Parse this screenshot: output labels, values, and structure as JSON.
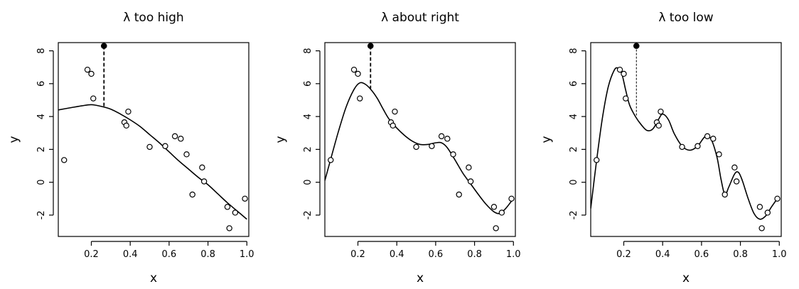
{
  "chart_data": [
    {
      "type": "scatter",
      "title": "λ too high",
      "xlabel": "x",
      "ylabel": "y",
      "xlim": [
        0.03,
        1.01
      ],
      "ylim": [
        -3.3,
        8.5
      ],
      "xticks": [
        0.2,
        0.4,
        0.6,
        0.8,
        1.0
      ],
      "xtick_labels": [
        "0.2",
        "0.4",
        "0.6",
        "0.8",
        "1.0"
      ],
      "yticks": [
        -2,
        0,
        2,
        4,
        6,
        8
      ],
      "ytick_labels": [
        "-2",
        "0",
        "2",
        "4",
        "6",
        "8"
      ],
      "grid": false,
      "points": [
        {
          "x": 0.06,
          "y": 1.35
        },
        {
          "x": 0.18,
          "y": 6.85
        },
        {
          "x": 0.2,
          "y": 6.6
        },
        {
          "x": 0.21,
          "y": 5.1
        },
        {
          "x": 0.37,
          "y": 3.65
        },
        {
          "x": 0.38,
          "y": 3.45
        },
        {
          "x": 0.39,
          "y": 4.3
        },
        {
          "x": 0.5,
          "y": 2.15
        },
        {
          "x": 0.58,
          "y": 2.2
        },
        {
          "x": 0.63,
          "y": 2.8
        },
        {
          "x": 0.66,
          "y": 2.65
        },
        {
          "x": 0.69,
          "y": 1.7
        },
        {
          "x": 0.72,
          "y": -0.75
        },
        {
          "x": 0.77,
          "y": 0.9
        },
        {
          "x": 0.78,
          "y": 0.05
        },
        {
          "x": 0.9,
          "y": -1.5
        },
        {
          "x": 0.91,
          "y": -2.8
        },
        {
          "x": 0.94,
          "y": -1.85
        },
        {
          "x": 0.99,
          "y": -1.0
        }
      ],
      "highlight": {
        "x": 0.265,
        "y": 8.3,
        "fit_y": 4.55
      },
      "curve": [
        {
          "x": 0.03,
          "y": 4.4
        },
        {
          "x": 0.1,
          "y": 4.55
        },
        {
          "x": 0.15,
          "y": 4.65
        },
        {
          "x": 0.2,
          "y": 4.72
        },
        {
          "x": 0.25,
          "y": 4.62
        },
        {
          "x": 0.3,
          "y": 4.45
        },
        {
          "x": 0.35,
          "y": 4.15
        },
        {
          "x": 0.4,
          "y": 3.8
        },
        {
          "x": 0.45,
          "y": 3.4
        },
        {
          "x": 0.5,
          "y": 2.9
        },
        {
          "x": 0.55,
          "y": 2.4
        },
        {
          "x": 0.6,
          "y": 1.85
        },
        {
          "x": 0.65,
          "y": 1.3
        },
        {
          "x": 0.7,
          "y": 0.8
        },
        {
          "x": 0.75,
          "y": 0.3
        },
        {
          "x": 0.8,
          "y": -0.15
        },
        {
          "x": 0.85,
          "y": -0.7
        },
        {
          "x": 0.9,
          "y": -1.25
        },
        {
          "x": 0.95,
          "y": -1.75
        },
        {
          "x": 1.0,
          "y": -2.25
        }
      ]
    },
    {
      "type": "scatter",
      "title": "λ about right",
      "xlabel": "x",
      "ylabel": "y",
      "xlim": [
        0.03,
        1.01
      ],
      "ylim": [
        -3.3,
        8.5
      ],
      "xticks": [
        0.2,
        0.4,
        0.6,
        0.8,
        1.0
      ],
      "xtick_labels": [
        "0.2",
        "0.4",
        "0.6",
        "0.8",
        "1.0"
      ],
      "yticks": [
        -2,
        0,
        2,
        4,
        6,
        8
      ],
      "ytick_labels": [
        "-2",
        "0",
        "2",
        "4",
        "6",
        "8"
      ],
      "grid": false,
      "points": [
        {
          "x": 0.06,
          "y": 1.35
        },
        {
          "x": 0.18,
          "y": 6.85
        },
        {
          "x": 0.2,
          "y": 6.6
        },
        {
          "x": 0.21,
          "y": 5.1
        },
        {
          "x": 0.37,
          "y": 3.65
        },
        {
          "x": 0.38,
          "y": 3.45
        },
        {
          "x": 0.39,
          "y": 4.3
        },
        {
          "x": 0.5,
          "y": 2.15
        },
        {
          "x": 0.58,
          "y": 2.2
        },
        {
          "x": 0.63,
          "y": 2.8
        },
        {
          "x": 0.66,
          "y": 2.65
        },
        {
          "x": 0.69,
          "y": 1.7
        },
        {
          "x": 0.72,
          "y": -0.75
        },
        {
          "x": 0.77,
          "y": 0.9
        },
        {
          "x": 0.78,
          "y": 0.05
        },
        {
          "x": 0.9,
          "y": -1.5
        },
        {
          "x": 0.91,
          "y": -2.8
        },
        {
          "x": 0.94,
          "y": -1.85
        },
        {
          "x": 0.99,
          "y": -1.0
        }
      ],
      "highlight": {
        "x": 0.265,
        "y": 8.3,
        "fit_y": 5.7
      },
      "curve": [
        {
          "x": 0.03,
          "y": 0.1
        },
        {
          "x": 0.06,
          "y": 1.4
        },
        {
          "x": 0.1,
          "y": 3.1
        },
        {
          "x": 0.14,
          "y": 4.6
        },
        {
          "x": 0.18,
          "y": 5.65
        },
        {
          "x": 0.21,
          "y": 6.05
        },
        {
          "x": 0.24,
          "y": 5.95
        },
        {
          "x": 0.27,
          "y": 5.6
        },
        {
          "x": 0.3,
          "y": 5.1
        },
        {
          "x": 0.33,
          "y": 4.45
        },
        {
          "x": 0.36,
          "y": 3.85
        },
        {
          "x": 0.4,
          "y": 3.3
        },
        {
          "x": 0.44,
          "y": 2.85
        },
        {
          "x": 0.48,
          "y": 2.5
        },
        {
          "x": 0.52,
          "y": 2.3
        },
        {
          "x": 0.56,
          "y": 2.3
        },
        {
          "x": 0.6,
          "y": 2.4
        },
        {
          "x": 0.63,
          "y": 2.4
        },
        {
          "x": 0.66,
          "y": 2.1
        },
        {
          "x": 0.7,
          "y": 1.35
        },
        {
          "x": 0.74,
          "y": 0.55
        },
        {
          "x": 0.78,
          "y": -0.1
        },
        {
          "x": 0.82,
          "y": -0.75
        },
        {
          "x": 0.86,
          "y": -1.35
        },
        {
          "x": 0.9,
          "y": -1.8
        },
        {
          "x": 0.93,
          "y": -1.9
        },
        {
          "x": 0.96,
          "y": -1.6
        },
        {
          "x": 0.99,
          "y": -1.15
        }
      ]
    },
    {
      "type": "scatter",
      "title": "λ too low",
      "xlabel": "x",
      "ylabel": "y",
      "xlim": [
        0.03,
        1.01
      ],
      "ylim": [
        -3.3,
        8.5
      ],
      "xticks": [
        0.2,
        0.4,
        0.6,
        0.8,
        1.0
      ],
      "xtick_labels": [
        "0.2",
        "0.4",
        "0.6",
        "0.8",
        "1.0"
      ],
      "yticks": [
        -2,
        0,
        2,
        4,
        6,
        8
      ],
      "ytick_labels": [
        "-2",
        "0",
        "2",
        "4",
        "6",
        "8"
      ],
      "grid": false,
      "points": [
        {
          "x": 0.06,
          "y": 1.35
        },
        {
          "x": 0.18,
          "y": 6.85
        },
        {
          "x": 0.2,
          "y": 6.6
        },
        {
          "x": 0.21,
          "y": 5.1
        },
        {
          "x": 0.37,
          "y": 3.65
        },
        {
          "x": 0.38,
          "y": 3.45
        },
        {
          "x": 0.39,
          "y": 4.3
        },
        {
          "x": 0.5,
          "y": 2.15
        },
        {
          "x": 0.58,
          "y": 2.2
        },
        {
          "x": 0.63,
          "y": 2.8
        },
        {
          "x": 0.66,
          "y": 2.65
        },
        {
          "x": 0.69,
          "y": 1.7
        },
        {
          "x": 0.72,
          "y": -0.75
        },
        {
          "x": 0.77,
          "y": 0.9
        },
        {
          "x": 0.78,
          "y": 0.05
        },
        {
          "x": 0.9,
          "y": -1.5
        },
        {
          "x": 0.91,
          "y": -2.8
        },
        {
          "x": 0.94,
          "y": -1.85
        },
        {
          "x": 0.99,
          "y": -1.0
        }
      ],
      "highlight": {
        "x": 0.265,
        "y": 8.3,
        "fit_y": 4.0
      },
      "curve": [
        {
          "x": 0.03,
          "y": -1.6
        },
        {
          "x": 0.06,
          "y": 1.3
        },
        {
          "x": 0.09,
          "y": 3.9
        },
        {
          "x": 0.12,
          "y": 5.8
        },
        {
          "x": 0.15,
          "y": 6.8
        },
        {
          "x": 0.17,
          "y": 6.95
        },
        {
          "x": 0.19,
          "y": 6.6
        },
        {
          "x": 0.21,
          "y": 5.6
        },
        {
          "x": 0.23,
          "y": 4.7
        },
        {
          "x": 0.26,
          "y": 4.0
        },
        {
          "x": 0.29,
          "y": 3.5
        },
        {
          "x": 0.32,
          "y": 3.15
        },
        {
          "x": 0.35,
          "y": 3.25
        },
        {
          "x": 0.38,
          "y": 3.85
        },
        {
          "x": 0.4,
          "y": 4.15
        },
        {
          "x": 0.43,
          "y": 3.8
        },
        {
          "x": 0.46,
          "y": 2.95
        },
        {
          "x": 0.5,
          "y": 2.2
        },
        {
          "x": 0.54,
          "y": 1.95
        },
        {
          "x": 0.58,
          "y": 2.2
        },
        {
          "x": 0.62,
          "y": 2.8
        },
        {
          "x": 0.65,
          "y": 2.6
        },
        {
          "x": 0.68,
          "y": 1.5
        },
        {
          "x": 0.7,
          "y": 0.2
        },
        {
          "x": 0.72,
          "y": -0.75
        },
        {
          "x": 0.74,
          "y": -0.3
        },
        {
          "x": 0.77,
          "y": 0.5
        },
        {
          "x": 0.79,
          "y": 0.6
        },
        {
          "x": 0.81,
          "y": 0.1
        },
        {
          "x": 0.84,
          "y": -1.0
        },
        {
          "x": 0.87,
          "y": -1.9
        },
        {
          "x": 0.9,
          "y": -2.25
        },
        {
          "x": 0.93,
          "y": -2.05
        },
        {
          "x": 0.96,
          "y": -1.5
        },
        {
          "x": 0.99,
          "y": -1.0
        }
      ]
    }
  ]
}
